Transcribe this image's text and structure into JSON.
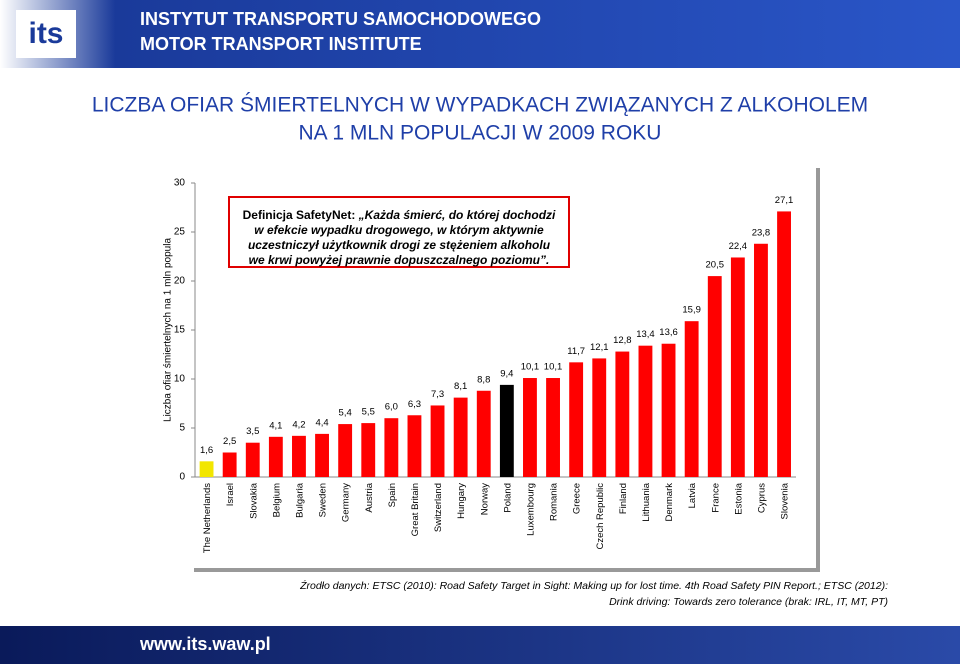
{
  "header": {
    "logo": "its",
    "title": "INSTYTUT TRANSPORTU SAMOCHODOWEGO",
    "subtitle": "MOTOR TRANSPORT INSTITUTE"
  },
  "chart_data": {
    "type": "bar",
    "title": [
      "LICZBA OFIAR ŚMIERTELNYCH W WYPADKACH ZWIĄZANYCH Z ALKOHOLEM",
      "NA 1 MLN  POPULACJI W 2009   ROKU"
    ],
    "y_label": "Liczba ofiar śmiertelnych na 1 mln popula",
    "categories": [
      "The Netherlands",
      "Israel",
      "Slovakia",
      "Belgium",
      "Bulgaria",
      "Sweden",
      "Germany",
      "Austria",
      "Spain",
      "Great Britain",
      "Switzerland",
      "Hungary",
      "Norway",
      "Poland",
      "Luxembourg",
      "Romania",
      "Greece",
      "Czech Republic",
      "Finland",
      "Lithuania",
      "Denmark",
      "Latvia",
      "France",
      "Estonia",
      "Cyprus",
      "Slovenia"
    ],
    "values": [
      1.6,
      2.5,
      3.5,
      4.1,
      4.2,
      4.4,
      5.4,
      5.5,
      6.0,
      6.3,
      7.3,
      8.1,
      8.8,
      9.4,
      10.1,
      10.1,
      11.7,
      12.1,
      12.8,
      13.4,
      13.6,
      15.9,
      20.5,
      22.4,
      23.8,
      27.1
    ],
    "value_labels": [
      "1,6",
      "2,5",
      "3,5",
      "4,1",
      "4,2",
      "4,4",
      "5,4",
      "5,5",
      "6,0",
      "6,3",
      "7,3",
      "8,1",
      "8,8",
      "9,4",
      "10,1",
      "10,1",
      "11,7",
      "12,1",
      "12,8",
      "13,4",
      "13,6",
      "15,9",
      "20,5",
      "22,4",
      "23,8",
      "27,1"
    ],
    "colors": [
      "#f2e600",
      "#ff0000",
      "#ff0000",
      "#ff0000",
      "#ff0000",
      "#ff0000",
      "#ff0000",
      "#ff0000",
      "#ff0000",
      "#ff0000",
      "#ff0000",
      "#ff0000",
      "#ff0000",
      "#000000",
      "#ff0000",
      "#ff0000",
      "#ff0000",
      "#ff0000",
      "#ff0000",
      "#ff0000",
      "#ff0000",
      "#ff0000",
      "#ff0000",
      "#ff0000",
      "#ff0000",
      "#ff0000"
    ],
    "ylim": [
      0,
      30
    ],
    "yticks": [
      0,
      5,
      10,
      15,
      20,
      25,
      30
    ],
    "grid": false,
    "annotation": {
      "label": "Definicja SafetyNet:",
      "text": "„Każda śmierć, do której dochodzi w efekcie wypadku drogowego, w którym aktywnie uczestniczył użytkownik drogi ze stężeniem alkoholu we krwi powyżej prawnie dopuszczalnego poziomu”."
    },
    "source": {
      "label": "Źrodło danych:",
      "text": "ETSC (2010): Road Safety Target in Sight: Making up for lost time. 4th Road Safety PIN Report.; ETSC (2012): Drink driving: Towards zero tolerance (brak: IRL, IT, MT, PT)"
    }
  },
  "footer": {
    "url": "www.its.waw.pl"
  }
}
